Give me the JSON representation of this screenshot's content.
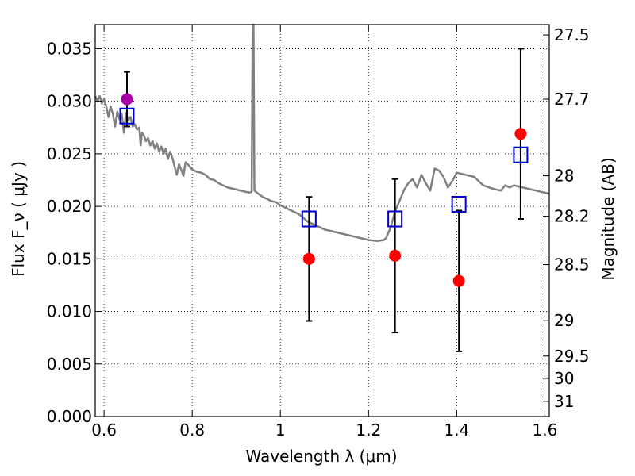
{
  "chart_data": {
    "type": "scatter",
    "xlabel": "Wavelength  λ (μm)",
    "ylabel_left": "Flux  F_ν  ( μJy )",
    "ylabel_right": "Magnitude (AB)",
    "xlim": [
      0.58,
      1.61
    ],
    "ylim": [
      0.0,
      0.0373
    ],
    "grid": true,
    "x_ticks": [
      {
        "value": 0.6,
        "label": "0.6"
      },
      {
        "value": 0.8,
        "label": "0.8"
      },
      {
        "value": 1.0,
        "label": "1"
      },
      {
        "value": 1.2,
        "label": "1.2"
      },
      {
        "value": 1.4,
        "label": "1.4"
      },
      {
        "value": 1.6,
        "label": "1.6"
      }
    ],
    "y_ticks": [
      {
        "value": 0.0,
        "label": "0.000"
      },
      {
        "value": 0.005,
        "label": "0.005"
      },
      {
        "value": 0.01,
        "label": "0.010"
      },
      {
        "value": 0.015,
        "label": "0.015"
      },
      {
        "value": 0.02,
        "label": "0.020"
      },
      {
        "value": 0.025,
        "label": "0.025"
      },
      {
        "value": 0.03,
        "label": "0.030"
      },
      {
        "value": 0.035,
        "label": "0.035"
      }
    ],
    "right_ticks": [
      {
        "value": 27.5,
        "label": "27.5"
      },
      {
        "value": 27.7,
        "label": "27.7"
      },
      {
        "value": 28.0,
        "label": "28"
      },
      {
        "value": 28.2,
        "label": "28.2"
      },
      {
        "value": 28.5,
        "label": "28.5"
      },
      {
        "value": 29.0,
        "label": "29"
      },
      {
        "value": 29.5,
        "label": "29.5"
      },
      {
        "value": 30.0,
        "label": "30"
      },
      {
        "value": 31.0,
        "label": "31"
      }
    ],
    "template_spectrum": {
      "color": "#808080",
      "points": [
        [
          0.58,
          0.0305
        ],
        [
          0.585,
          0.03
        ],
        [
          0.59,
          0.0305
        ],
        [
          0.595,
          0.0298
        ],
        [
          0.6,
          0.0302
        ],
        [
          0.605,
          0.0295
        ],
        [
          0.61,
          0.0285
        ],
        [
          0.615,
          0.0295
        ],
        [
          0.62,
          0.0288
        ],
        [
          0.625,
          0.0276
        ],
        [
          0.63,
          0.029
        ],
        [
          0.635,
          0.0283
        ],
        [
          0.64,
          0.0288
        ],
        [
          0.645,
          0.027
        ],
        [
          0.65,
          0.0289
        ],
        [
          0.655,
          0.0282
        ],
        [
          0.66,
          0.0285
        ],
        [
          0.665,
          0.0276
        ],
        [
          0.67,
          0.0278
        ],
        [
          0.675,
          0.0273
        ],
        [
          0.68,
          0.0275
        ],
        [
          0.683,
          0.0258
        ],
        [
          0.686,
          0.027
        ],
        [
          0.69,
          0.0268
        ],
        [
          0.695,
          0.0262
        ],
        [
          0.7,
          0.0265
        ],
        [
          0.705,
          0.0258
        ],
        [
          0.71,
          0.0262
        ],
        [
          0.715,
          0.0255
        ],
        [
          0.72,
          0.026
        ],
        [
          0.725,
          0.0252
        ],
        [
          0.73,
          0.0257
        ],
        [
          0.735,
          0.025
        ],
        [
          0.74,
          0.0255
        ],
        [
          0.745,
          0.0245
        ],
        [
          0.75,
          0.0252
        ],
        [
          0.755,
          0.0246
        ],
        [
          0.76,
          0.0238
        ],
        [
          0.765,
          0.023
        ],
        [
          0.77,
          0.024
        ],
        [
          0.775,
          0.0235
        ],
        [
          0.78,
          0.0229
        ],
        [
          0.785,
          0.0242
        ],
        [
          0.79,
          0.024
        ],
        [
          0.8,
          0.0235
        ],
        [
          0.81,
          0.0233
        ],
        [
          0.82,
          0.0232
        ],
        [
          0.83,
          0.023
        ],
        [
          0.84,
          0.0226
        ],
        [
          0.85,
          0.0225
        ],
        [
          0.86,
          0.0222
        ],
        [
          0.87,
          0.022
        ],
        [
          0.88,
          0.0218
        ],
        [
          0.89,
          0.0217
        ],
        [
          0.9,
          0.0216
        ],
        [
          0.91,
          0.0215
        ],
        [
          0.92,
          0.0214
        ],
        [
          0.93,
          0.0213
        ],
        [
          0.935,
          0.0214
        ],
        [
          0.937,
          0.0373
        ],
        [
          0.939,
          0.0373
        ],
        [
          0.941,
          0.0215
        ],
        [
          0.95,
          0.0212
        ],
        [
          0.96,
          0.0209
        ],
        [
          0.97,
          0.0207
        ],
        [
          0.98,
          0.0205
        ],
        [
          0.99,
          0.0204
        ],
        [
          1.0,
          0.0201
        ],
        [
          1.01,
          0.0199
        ],
        [
          1.02,
          0.0197
        ],
        [
          1.03,
          0.0195
        ],
        [
          1.04,
          0.0193
        ],
        [
          1.05,
          0.019
        ],
        [
          1.06,
          0.0186
        ],
        [
          1.08,
          0.0182
        ],
        [
          1.1,
          0.0178
        ],
        [
          1.12,
          0.0176
        ],
        [
          1.14,
          0.0174
        ],
        [
          1.16,
          0.0172
        ],
        [
          1.18,
          0.017
        ],
        [
          1.2,
          0.0168
        ],
        [
          1.22,
          0.0167
        ],
        [
          1.235,
          0.0168
        ],
        [
          1.24,
          0.017
        ],
        [
          1.25,
          0.018
        ],
        [
          1.26,
          0.0195
        ],
        [
          1.27,
          0.0205
        ],
        [
          1.28,
          0.0215
        ],
        [
          1.29,
          0.0222
        ],
        [
          1.3,
          0.0226
        ],
        [
          1.31,
          0.0218
        ],
        [
          1.32,
          0.023
        ],
        [
          1.33,
          0.0222
        ],
        [
          1.34,
          0.0215
        ],
        [
          1.35,
          0.0236
        ],
        [
          1.36,
          0.0234
        ],
        [
          1.37,
          0.0228
        ],
        [
          1.38,
          0.0218
        ],
        [
          1.39,
          0.0224
        ],
        [
          1.4,
          0.0232
        ],
        [
          1.42,
          0.023
        ],
        [
          1.44,
          0.0228
        ],
        [
          1.46,
          0.022
        ],
        [
          1.48,
          0.0217
        ],
        [
          1.5,
          0.0215
        ],
        [
          1.51,
          0.022
        ],
        [
          1.52,
          0.0218
        ],
        [
          1.53,
          0.022
        ],
        [
          1.54,
          0.0219
        ],
        [
          1.56,
          0.0217
        ],
        [
          1.58,
          0.0215
        ],
        [
          1.6,
          0.0213
        ],
        [
          1.61,
          0.0212
        ]
      ]
    },
    "observed": {
      "color": "#ff0000",
      "points": [
        {
          "x": 1.065,
          "y": 0.015,
          "err": 0.0059
        },
        {
          "x": 1.26,
          "y": 0.0153,
          "err": 0.0073
        },
        {
          "x": 1.405,
          "y": 0.0129,
          "err": 0.0067
        },
        {
          "x": 1.545,
          "y": 0.0269,
          "err": 0.0081
        }
      ]
    },
    "observed_visible": {
      "color": "#aa00aa",
      "points": [
        {
          "x": 0.652,
          "y": 0.0302,
          "err": 0.0026
        }
      ]
    },
    "model_boxes": {
      "color": "#0000cc",
      "points": [
        {
          "x": 0.652,
          "y": 0.0286
        },
        {
          "x": 1.065,
          "y": 0.0188
        },
        {
          "x": 1.26,
          "y": 0.0188
        },
        {
          "x": 1.405,
          "y": 0.0202
        },
        {
          "x": 1.545,
          "y": 0.0249
        }
      ]
    }
  }
}
